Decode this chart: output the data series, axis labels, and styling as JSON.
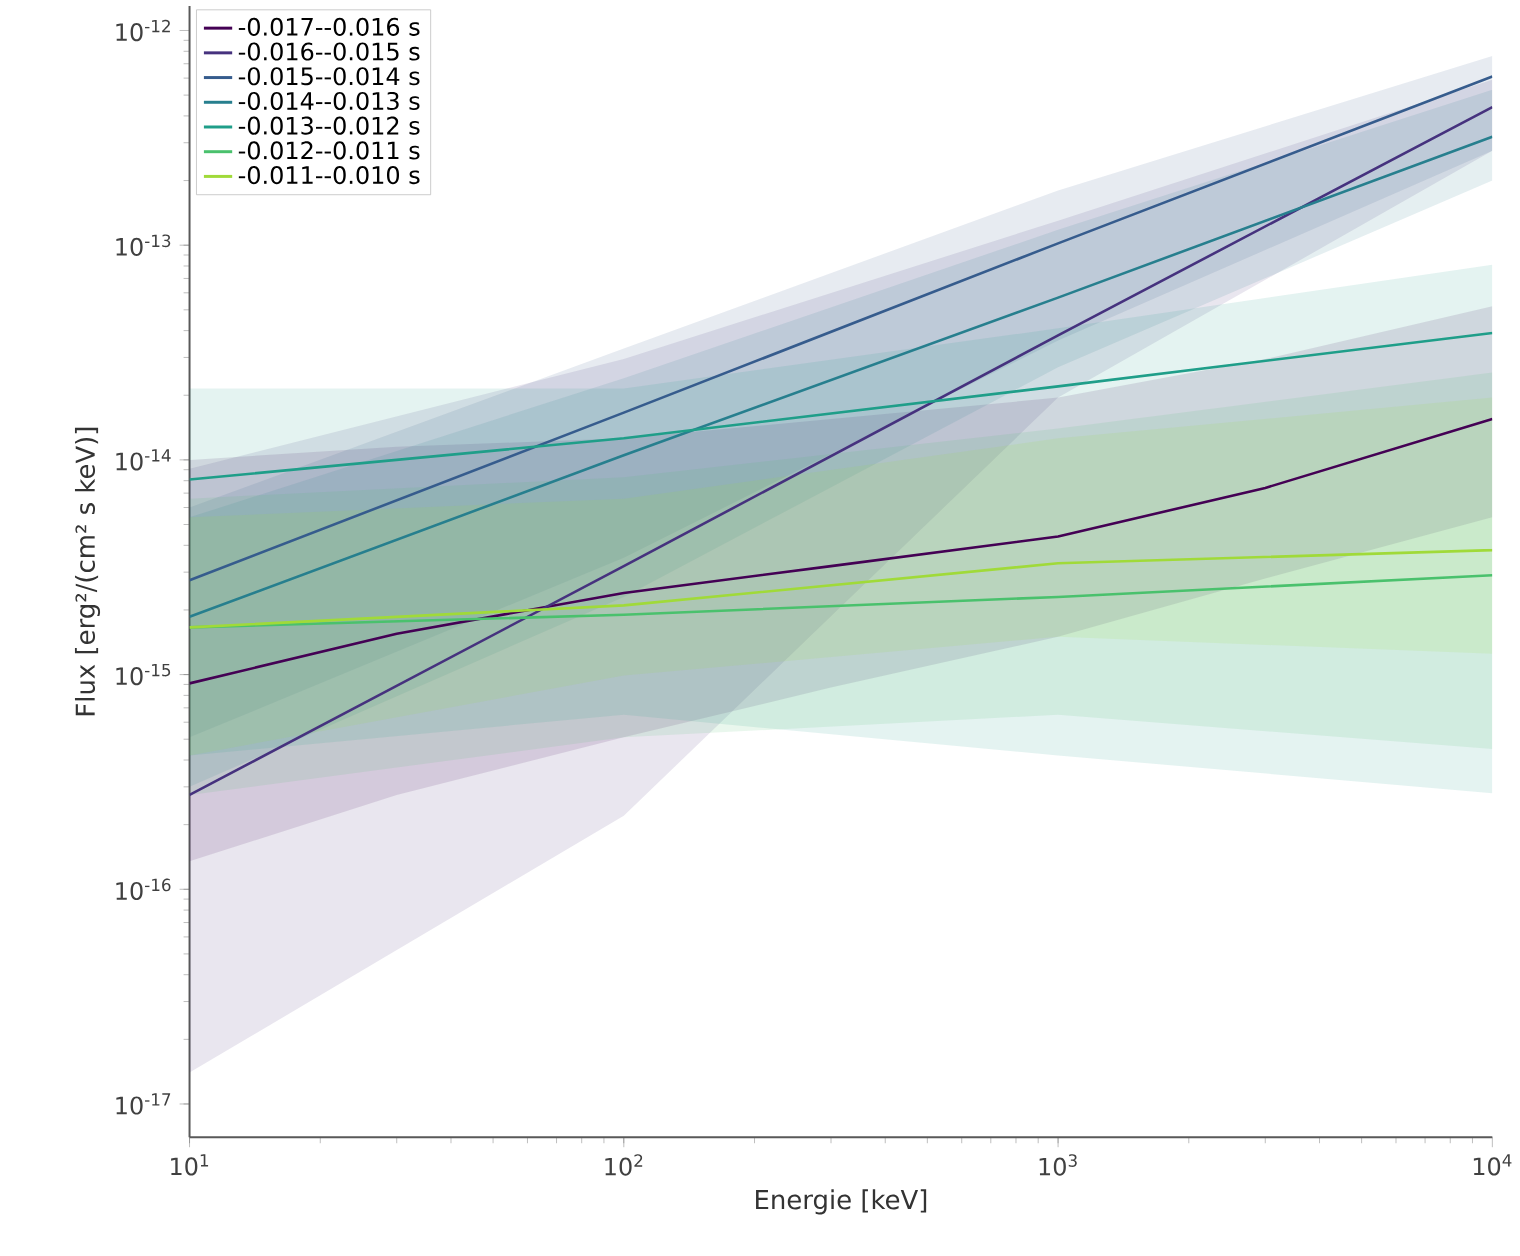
{
  "chart_data": {
    "type": "line",
    "xlabel": "Energie [keV]",
    "ylabel": "Flux [erg²/(cm² s keV)]",
    "log": "xy",
    "legend": "top left",
    "grid": false,
    "line_style": "solid",
    "marker": "none",
    "xlim": [
      10,
      10000
    ],
    "ylim": [
      7e-18,
      1.3e-12
    ],
    "xticks": [
      {
        "value": 10,
        "label": "10$^{1}$"
      },
      {
        "value": 100,
        "label": "10$^{2}$"
      },
      {
        "value": 1000,
        "label": "10$^{3}$"
      },
      {
        "value": 10000,
        "label": "10$^{4}$"
      }
    ],
    "yticks": [
      {
        "value": 1e-17,
        "label": "10$^{-17}$"
      },
      {
        "value": 1e-16,
        "label": "10$^{-16}$"
      },
      {
        "value": 1e-15,
        "label": "10$^{-15}$"
      },
      {
        "value": 1e-14,
        "label": "10$^{-14}$"
      },
      {
        "value": 1e-13,
        "label": "10$^{-13}$"
      },
      {
        "value": 1e-12,
        "label": "10$^{-12}$"
      }
    ],
    "series": [
      {
        "name": "-0.017--0.016 s",
        "color": "#440154",
        "x": [
          10,
          30,
          100,
          300,
          1000,
          3000,
          10000
        ],
        "values": [
          9.1e-16,
          1.55e-15,
          2.4e-15,
          3.2e-15,
          4.4e-15,
          7.4e-15,
          1.55e-14
        ],
        "lower": [
          1.35e-16,
          2.75e-16,
          5.1e-16,
          8.7e-16,
          1.5e-15,
          2.8e-15,
          5.4e-15
        ],
        "upper": [
          1e-14,
          1.15e-14,
          1.26e-14,
          1.55e-14,
          1.95e-14,
          2.95e-14,
          5.2e-14
        ]
      },
      {
        "name": "-0.016--0.015 s",
        "color": "#46327e",
        "x": [
          10,
          100,
          1000,
          10000
        ],
        "values": [
          2.75e-16,
          3.2e-15,
          3.8e-14,
          4.4e-13
        ],
        "lower": [
          1.4e-17,
          2.2e-16,
          1.95e-14,
          2.75e-13
        ],
        "upper": [
          9.1e-15,
          2.95e-14,
          1.3e-13,
          5.9e-13
        ]
      },
      {
        "name": "-0.015--0.014 s",
        "color": "#365c8d",
        "x": [
          10,
          100,
          1000,
          10000
        ],
        "values": [
          2.75e-15,
          1.66e-14,
          1.02e-13,
          6.1e-13
        ],
        "lower": [
          5.1e-16,
          3.5e-15,
          3.6e-14,
          2.75e-13
        ],
        "upper": [
          6e-15,
          3.3e-14,
          1.8e-13,
          7.6e-13
        ]
      },
      {
        "name": "-0.014--0.013 s",
        "color": "#277f8e",
        "x": [
          10,
          100,
          1000,
          10000
        ],
        "values": [
          1.86e-15,
          1.05e-14,
          5.7e-14,
          3.2e-13
        ],
        "lower": [
          3e-16,
          2.3e-15,
          2.7e-14,
          2e-13
        ],
        "upper": [
          5.4e-15,
          2.4e-14,
          1.18e-13,
          5.3e-13
        ]
      },
      {
        "name": "-0.013--0.012 s",
        "color": "#1f9e89",
        "x": [
          10,
          100,
          1000,
          10000
        ],
        "values": [
          8.1e-15,
          1.26e-14,
          2.2e-14,
          3.9e-14
        ],
        "lower": [
          4.2e-16,
          6.5e-16,
          4.2e-16,
          2.8e-16
        ],
        "upper": [
          2.15e-14,
          2.15e-14,
          4.1e-14,
          8.1e-14
        ]
      },
      {
        "name": "-0.012--0.011 s",
        "color": "#4ac16d",
        "x": [
          10,
          100,
          1000,
          10000
        ],
        "values": [
          1.66e-15,
          1.9e-15,
          2.3e-15,
          2.9e-15
        ],
        "lower": [
          2.75e-16,
          5.1e-16,
          6.5e-16,
          4.5e-16
        ],
        "upper": [
          6.6e-15,
          8.3e-15,
          1.4e-14,
          2.55e-14
        ]
      },
      {
        "name": "-0.011--0.010 s",
        "color": "#a0da39",
        "x": [
          10,
          100,
          1000,
          10000
        ],
        "values": [
          1.66e-15,
          2.1e-15,
          3.3e-15,
          3.8e-15
        ],
        "lower": [
          4.2e-16,
          9.9e-16,
          1.5e-15,
          1.25e-15
        ],
        "upper": [
          5.4e-15,
          6.6e-15,
          1.26e-14,
          1.95e-14
        ]
      }
    ]
  }
}
